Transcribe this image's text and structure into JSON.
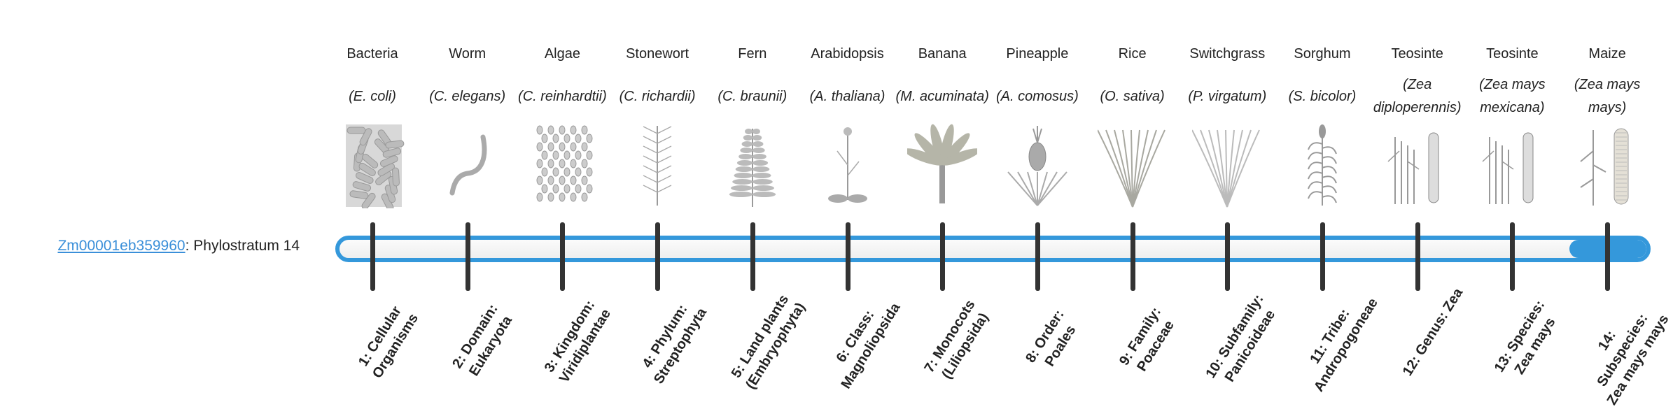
{
  "gene": {
    "id": "Zm00001eb359960",
    "suffix": ": Phylostratum 14"
  },
  "phylostratum": {
    "current": 14,
    "total": 14
  },
  "colors": {
    "accent": "#3498db",
    "tick": "#333333",
    "link": "#3a8fd9"
  },
  "strata": [
    {
      "common": "Bacteria",
      "latin": "(E. coli)",
      "icon": "bacteria-icon",
      "rank": "1: Cellular Organisms"
    },
    {
      "common": "Worm",
      "latin": "(C. elegans)",
      "icon": "worm-icon",
      "rank": "2: Domain: Eukaryota"
    },
    {
      "common": "Algae",
      "latin": "(C. reinhardtii)",
      "icon": "algae-icon",
      "rank": "3: Kingdom: Viridiplantae"
    },
    {
      "common": "Stonewort",
      "latin": "(C. richardii)",
      "icon": "stonewort-icon",
      "rank": "4: Phylum: Streptophyta"
    },
    {
      "common": "Fern",
      "latin": "(C. braunii)",
      "icon": "fern-icon",
      "rank": "5: Land plants (Embryophyta)"
    },
    {
      "common": "Arabidopsis",
      "latin": "(A. thaliana)",
      "icon": "arabidopsis-icon",
      "rank": "6: Class: Magnoliopsida"
    },
    {
      "common": "Banana",
      "latin": "(M. acuminata)",
      "icon": "banana-icon",
      "rank": "7: Monocots (Liliopsida)"
    },
    {
      "common": "Pineapple",
      "latin": "(A. comosus)",
      "icon": "pineapple-icon",
      "rank": "8: Order: Poales"
    },
    {
      "common": "Rice",
      "latin": "(O. sativa)",
      "icon": "rice-icon",
      "rank": "9: Family: Poaceae"
    },
    {
      "common": "Switchgrass",
      "latin": "(P. virgatum)",
      "icon": "switchgrass-icon",
      "rank": "10: Subfamily: Panicoideae"
    },
    {
      "common": "Sorghum",
      "latin": "(S. bicolor)",
      "icon": "sorghum-icon",
      "rank": "11: Tribe: Andropogoneae"
    },
    {
      "common": "Teosinte",
      "latin": "(Zea diploperennis)",
      "icon": "teosinte-icon",
      "rank": "12: Genus: Zea"
    },
    {
      "common": "Teosinte",
      "latin": "(Zea mays mexicana)",
      "icon": "teosinte-mexicana-icon",
      "rank": "13: Species: Zea mays"
    },
    {
      "common": "Maize",
      "latin": "(Zea mays mays)",
      "icon": "maize-icon",
      "rank": "14: Subspecies: Zea mays mays"
    }
  ]
}
